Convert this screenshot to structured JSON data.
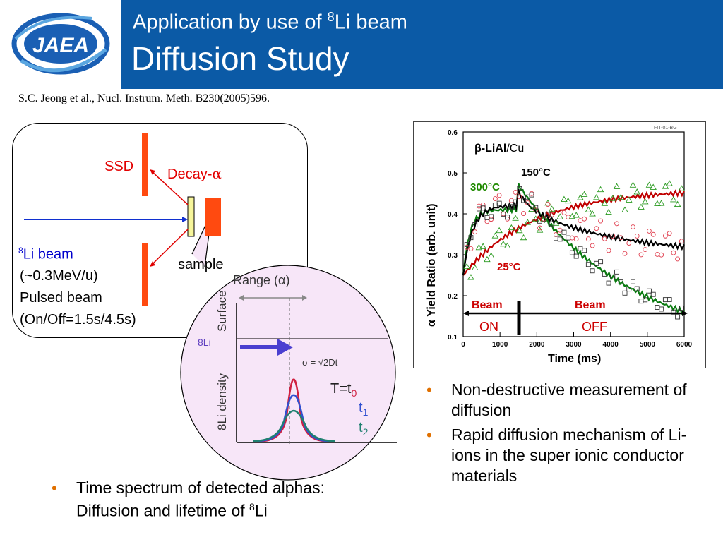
{
  "logo": {
    "text": "JAEA",
    "colors": {
      "ring": "#1a5fb4",
      "swoosh": "#5aa6e0"
    }
  },
  "title": {
    "line1_prefix": "Application by use of ",
    "line1_sup": "8",
    "line1_suffix": "Li beam",
    "line2": "Diffusion Study"
  },
  "citation": "S.C. Jeong et al., Nucl. Instrum. Meth. B230(2005)596.",
  "setup": {
    "ssd_label": "SSD",
    "decay_label": "Decay-",
    "decay_symbol": "α",
    "sample_label": "sample",
    "beam_sup": "8",
    "beam_label": "Li beam",
    "beam_energy": "(~0.3MeV/u)",
    "beam_type": "Pulsed beam",
    "beam_timing": "(On/Off=1.5s/4.5s)"
  },
  "diffusion_diagram": {
    "range_label": "Range (α)",
    "surface_label": "Surface",
    "li_label": "8Li",
    "density_label": "8Li density",
    "sigma_label": "σ = √2Dt",
    "t0_label": "T=t",
    "t0_sub": "0",
    "t1_label": "t",
    "t1_sub": "1",
    "t2_label": "t",
    "t2_sub": "2"
  },
  "plot": {
    "fig_id": "FIT-01-BG",
    "material_prefix": "β-LiAl",
    "material_suffix": "/Cu",
    "temp_150": "150°C",
    "temp_300": "300°C",
    "temp_25": "25°C",
    "beam_on_1": "Beam",
    "beam_on_2": "ON",
    "beam_off_1": "Beam",
    "beam_off_2": "OFF",
    "x_label": "Time (ms)",
    "y_label": "α Yield Ratio (arb. unit)",
    "y_ticks": [
      "0.6",
      "0.5",
      "0.4",
      "0.3",
      "0.2",
      "0.1"
    ],
    "x_ticks": [
      "0",
      "1000",
      "2000",
      "3000",
      "4000",
      "5000",
      "6000"
    ],
    "colors": {
      "c150": "#000000",
      "c300": "#c00000",
      "c25": "#0a7a10",
      "label300": "#1f8a00",
      "label25": "#cc0000"
    }
  },
  "bullets_right": [
    "Non-destructive measurement of diffusion",
    "Rapid diffusion mechanism of Li-ions in the super ionic conductor materials"
  ],
  "bullet_bottom": {
    "text": "Time spectrum of detected alphas: Diffusion and lifetime of ",
    "sup": "8",
    "suffix": "Li"
  }
}
